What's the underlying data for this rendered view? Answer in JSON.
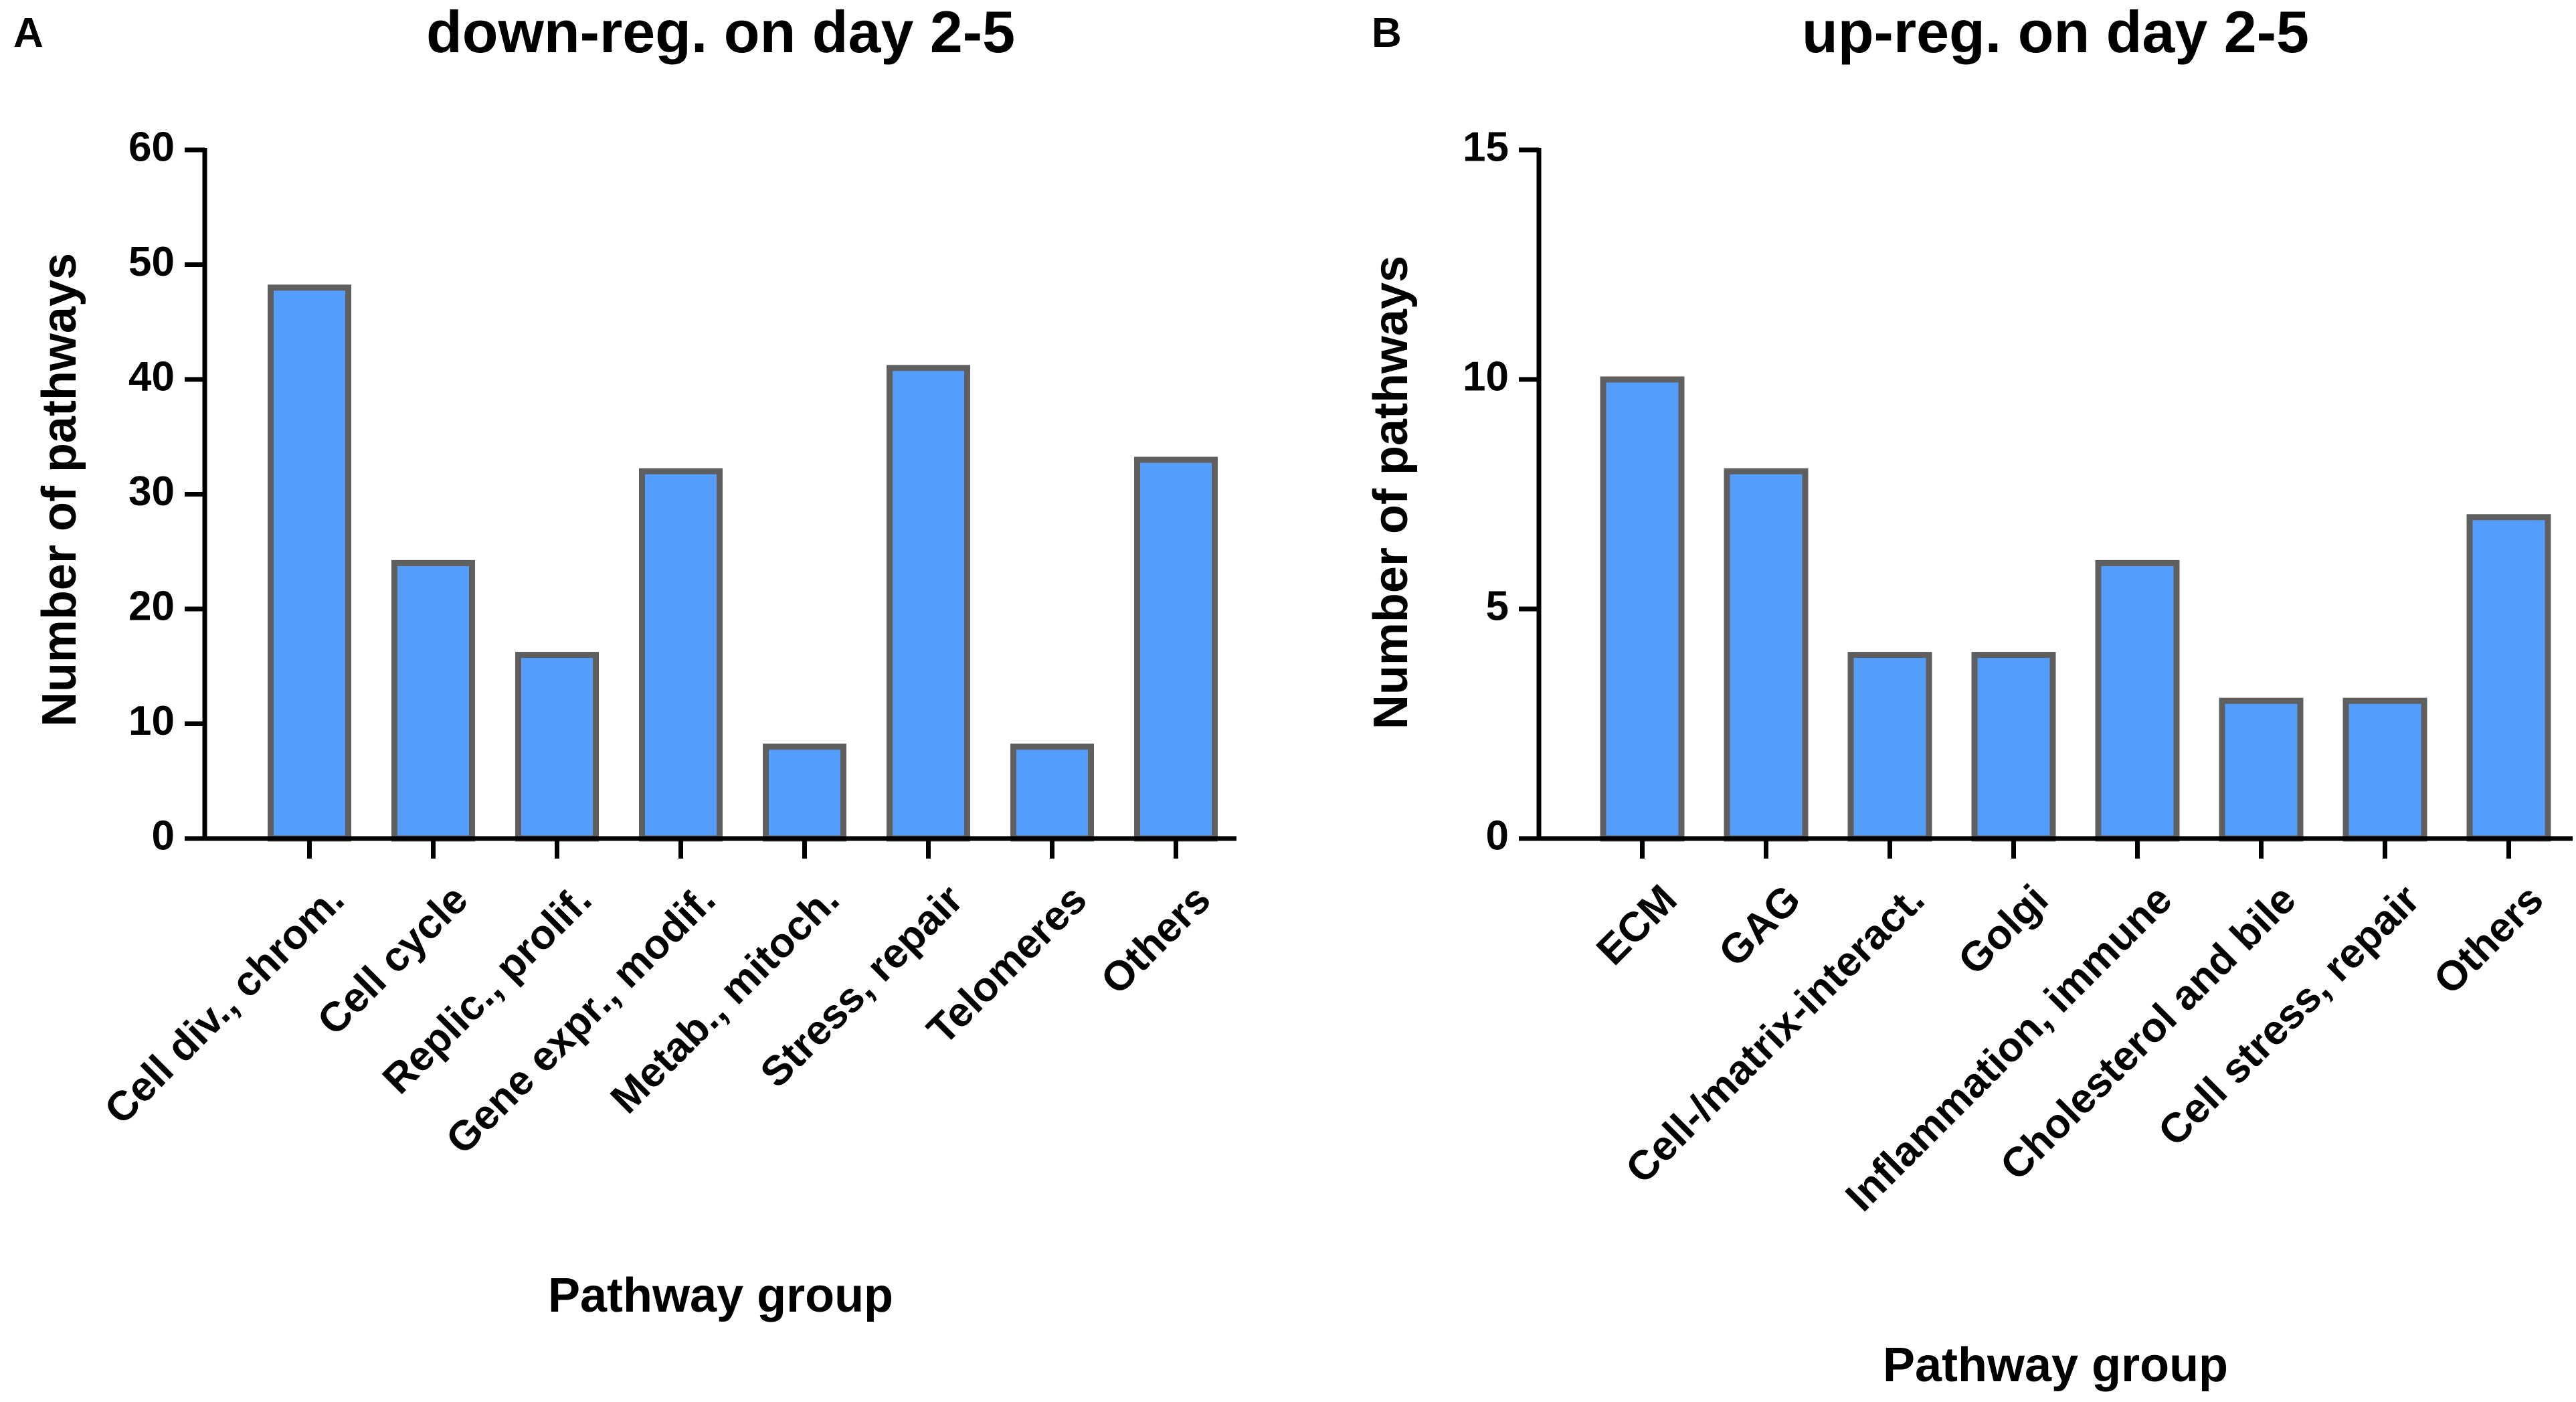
{
  "colors": {
    "bar_fill": "#559DFB",
    "bar_stroke": "#5F5F5F",
    "axis": "#000000",
    "text": "#000000"
  },
  "chart_data": [
    {
      "panel_label": "A",
      "type": "bar",
      "title": "down-reg. on day 2-5",
      "xlabel": "Pathway group",
      "ylabel": "Number of pathways",
      "ylim": [
        0,
        60
      ],
      "yticks": [
        0,
        10,
        20,
        30,
        40,
        50,
        60
      ],
      "categories": [
        "Cell div., chrom.",
        "Cell cycle",
        "Replic., prolif.",
        "Gene expr., modif.",
        "Metab., mitoch.",
        "Stress, repair",
        "Telomeres",
        "Others"
      ],
      "values": [
        48,
        24,
        16,
        32,
        8,
        41,
        8,
        33
      ],
      "grid": false,
      "legend": "none"
    },
    {
      "panel_label": "B",
      "type": "bar",
      "title": "up-reg. on day 2-5",
      "xlabel": "Pathway group",
      "ylabel": "Number of pathways",
      "ylim": [
        0,
        15
      ],
      "yticks": [
        0,
        5,
        10,
        15
      ],
      "categories": [
        "ECM",
        "GAG",
        "Cell-/matrix-interact.",
        "Golgi",
        "Inflammation, immune",
        "Cholesterol and bile",
        "Cell stress, repair",
        "Others"
      ],
      "values": [
        10,
        8,
        4,
        4,
        6,
        3,
        3,
        7
      ],
      "grid": false,
      "legend": "none"
    }
  ]
}
